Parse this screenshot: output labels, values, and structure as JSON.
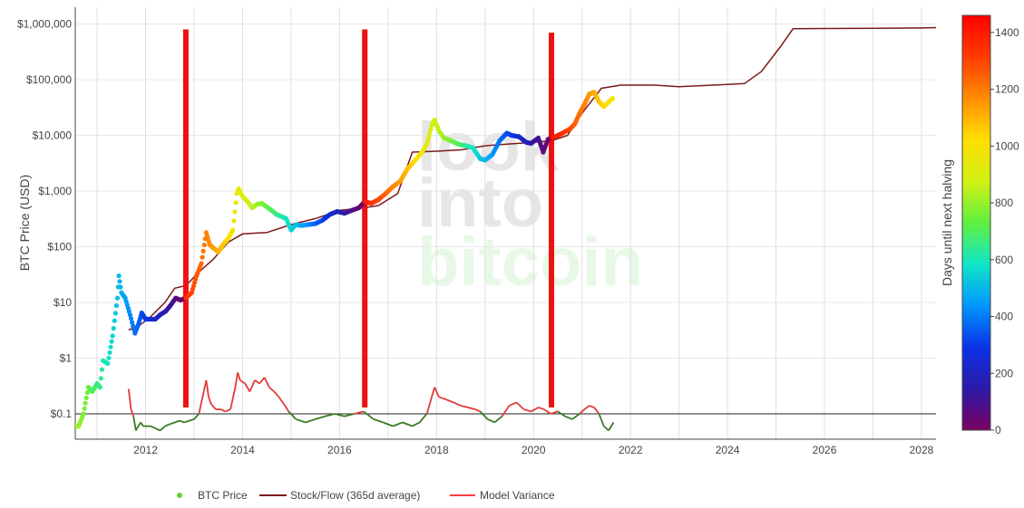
{
  "chart_data": {
    "type": "line",
    "title": "",
    "xlabel": "",
    "ylabel": "BTC Price (USD)",
    "y_scale": "log",
    "ylim": [
      0.035,
      2000000
    ],
    "xlim": [
      2010.55,
      2028.3
    ],
    "x_ticks": [
      {
        "v": 2012,
        "label": "2012"
      },
      {
        "v": 2014,
        "label": "2014"
      },
      {
        "v": 2016,
        "label": "2016"
      },
      {
        "v": 2018,
        "label": "2018"
      },
      {
        "v": 2020,
        "label": "2020"
      },
      {
        "v": 2022,
        "label": "2022"
      },
      {
        "v": 2024,
        "label": "2024"
      },
      {
        "v": 2026,
        "label": "2026"
      },
      {
        "v": 2028,
        "label": "2028"
      }
    ],
    "y_ticks": [
      {
        "v": 0.1,
        "label": "$0.1"
      },
      {
        "v": 1,
        "label": "$1"
      },
      {
        "v": 10,
        "label": "$10"
      },
      {
        "v": 100,
        "label": "$100"
      },
      {
        "v": 1000,
        "label": "$1,000"
      },
      {
        "v": 10000,
        "label": "$10,000"
      },
      {
        "v": 100000,
        "label": "$100,000"
      },
      {
        "v": 1000000,
        "label": "$1,000,000"
      }
    ],
    "grid": true,
    "reference_line_y": 0.1,
    "colorbar": {
      "title": "Days until next halving",
      "min": 0,
      "max": 1460,
      "ticks": [
        0,
        200,
        400,
        600,
        800,
        1000,
        1200,
        1400
      ],
      "colorscale": [
        "#7a0060",
        "#2c1aa8",
        "#0a32e6",
        "#0096ff",
        "#10e6c8",
        "#60f040",
        "#d2f014",
        "#ffe000",
        "#ff8c00",
        "#ff3c00",
        "#ff0000"
      ]
    },
    "halvings": [
      {
        "x": 2012.83,
        "top": 800000,
        "bottom": 0.13
      },
      {
        "x": 2016.52,
        "top": 800000,
        "bottom": 0.13
      },
      {
        "x": 2020.37,
        "top": 700000,
        "bottom": 0.13
      }
    ],
    "series": [
      {
        "name": "BTC Price",
        "color": "#5bd63a",
        "x": [
          2010.55,
          2010.62,
          2010.72,
          2010.82,
          2010.9,
          2011.0,
          2011.06,
          2011.12,
          2011.22,
          2011.32,
          2011.42,
          2011.45,
          2011.5,
          2011.58,
          2011.68,
          2011.78,
          2011.85,
          2011.92,
          2012.0,
          2012.1,
          2012.2,
          2012.3,
          2012.42,
          2012.52,
          2012.62,
          2012.72,
          2012.83,
          2012.95,
          2013.05,
          2013.15,
          2013.25,
          2013.32,
          2013.4,
          2013.5,
          2013.6,
          2013.7,
          2013.8,
          2013.88,
          2013.92,
          2014.0,
          2014.1,
          2014.2,
          2014.3,
          2014.4,
          2014.5,
          2014.6,
          2014.7,
          2014.8,
          2014.9,
          2015.0,
          2015.1,
          2015.2,
          2015.35,
          2015.5,
          2015.65,
          2015.8,
          2015.95,
          2016.1,
          2016.25,
          2016.4,
          2016.52,
          2016.65,
          2016.8,
          2016.95,
          2017.1,
          2017.25,
          2017.4,
          2017.55,
          2017.7,
          2017.8,
          2017.9,
          2017.96,
          2018.05,
          2018.15,
          2018.3,
          2018.45,
          2018.6,
          2018.75,
          2018.9,
          2019.0,
          2019.15,
          2019.3,
          2019.45,
          2019.55,
          2019.7,
          2019.85,
          2019.95,
          2020.1,
          2020.2,
          2020.3,
          2020.45,
          2020.6,
          2020.75,
          2020.85,
          2020.95,
          2021.05,
          2021.15,
          2021.25,
          2021.35,
          2021.45,
          2021.55,
          2021.65
        ],
        "values": [
          0.06,
          0.06,
          0.1,
          0.3,
          0.25,
          0.35,
          0.3,
          0.9,
          0.8,
          2.5,
          12,
          30,
          15,
          12,
          6,
          2.8,
          4,
          6.5,
          5,
          5,
          5,
          6,
          7,
          9,
          12,
          11,
          12,
          15,
          30,
          50,
          180,
          110,
          95,
          80,
          110,
          140,
          200,
          900,
          1100,
          800,
          650,
          500,
          580,
          600,
          520,
          450,
          380,
          350,
          320,
          200,
          250,
          240,
          250,
          260,
          300,
          380,
          430,
          400,
          450,
          500,
          650,
          600,
          700,
          900,
          1200,
          1500,
          2500,
          3500,
          5000,
          7000,
          15000,
          19000,
          12000,
          9000,
          8000,
          7000,
          6500,
          6000,
          3800,
          3600,
          4500,
          8000,
          11000,
          10000,
          9500,
          7500,
          7200,
          9000,
          5000,
          8500,
          9500,
          11000,
          13000,
          16000,
          25000,
          36000,
          55000,
          60000,
          40000,
          33000,
          40000,
          48000
        ]
      },
      {
        "name": "Stock/Flow (365d average)",
        "color": "#7c1a1a",
        "x": [
          2011.65,
          2011.9,
          2012.1,
          2012.4,
          2012.6,
          2012.83,
          2013.1,
          2013.4,
          2013.7,
          2014.0,
          2014.5,
          2015.0,
          2015.5,
          2016.0,
          2016.5,
          2016.8,
          2017.2,
          2017.5,
          2018.0,
          2018.5,
          2019.0,
          2019.5,
          2020.0,
          2020.37,
          2020.7,
          2021.0,
          2021.4,
          2021.8,
          2022.5,
          2023.0,
          2024.0,
          2024.35,
          2024.7,
          2025.1,
          2025.35,
          2026.0,
          2027.0,
          2028.0,
          2028.3
        ],
        "values": [
          3.2,
          4,
          5.5,
          10,
          18,
          20,
          35,
          60,
          120,
          170,
          180,
          250,
          320,
          450,
          500,
          550,
          900,
          5000,
          5200,
          5500,
          6500,
          7000,
          7500,
          8000,
          10000,
          25000,
          70000,
          80000,
          80000,
          75000,
          82000,
          85000,
          140000,
          400000,
          820000,
          830000,
          840000,
          850000,
          860000
        ]
      },
      {
        "name": "Model Variance",
        "color": "#ff3c3c",
        "x": [
          2011.65,
          2011.7,
          2011.75,
          2011.8,
          2011.85,
          2011.9,
          2011.95,
          2012.0,
          2012.1,
          2012.2,
          2012.3,
          2012.4,
          2012.5,
          2012.6,
          2012.7,
          2012.8,
          2012.9,
          2013.0,
          2013.1,
          2013.2,
          2013.25,
          2013.3,
          2013.35,
          2013.45,
          2013.55,
          2013.65,
          2013.75,
          2013.85,
          2013.9,
          2013.95,
          2014.05,
          2014.15,
          2014.25,
          2014.35,
          2014.45,
          2014.55,
          2014.65,
          2014.75,
          2014.85,
          2014.95,
          2015.1,
          2015.3,
          2015.5,
          2015.7,
          2015.9,
          2016.1,
          2016.3,
          2016.5,
          2016.7,
          2016.9,
          2017.1,
          2017.3,
          2017.5,
          2017.65,
          2017.8,
          2017.9,
          2017.96,
          2018.05,
          2018.2,
          2018.35,
          2018.5,
          2018.65,
          2018.8,
          2018.9,
          2019.05,
          2019.2,
          2019.35,
          2019.5,
          2019.65,
          2019.8,
          2019.95,
          2020.1,
          2020.22,
          2020.35,
          2020.5,
          2020.65,
          2020.8,
          2020.95,
          2021.05,
          2021.15,
          2021.25,
          2021.35,
          2021.45,
          2021.55,
          2021.65
        ],
        "values": [
          0.28,
          0.12,
          0.09,
          0.05,
          0.06,
          0.07,
          0.06,
          0.06,
          0.06,
          0.055,
          0.05,
          0.06,
          0.065,
          0.07,
          0.075,
          0.07,
          0.075,
          0.08,
          0.1,
          0.25,
          0.4,
          0.2,
          0.15,
          0.12,
          0.12,
          0.11,
          0.12,
          0.3,
          0.55,
          0.4,
          0.35,
          0.25,
          0.4,
          0.35,
          0.45,
          0.3,
          0.25,
          0.2,
          0.15,
          0.11,
          0.08,
          0.07,
          0.08,
          0.09,
          0.1,
          0.09,
          0.1,
          0.11,
          0.08,
          0.07,
          0.06,
          0.07,
          0.06,
          0.07,
          0.1,
          0.2,
          0.3,
          0.2,
          0.18,
          0.16,
          0.14,
          0.13,
          0.12,
          0.11,
          0.08,
          0.07,
          0.09,
          0.14,
          0.16,
          0.12,
          0.11,
          0.13,
          0.12,
          0.1,
          0.11,
          0.09,
          0.08,
          0.1,
          0.12,
          0.14,
          0.13,
          0.1,
          0.06,
          0.05,
          0.07
        ]
      }
    ],
    "legend": {
      "placement": "bottom-left"
    }
  },
  "watermark": {
    "line1": "look",
    "line2": "into",
    "line3": "bitcoin"
  }
}
